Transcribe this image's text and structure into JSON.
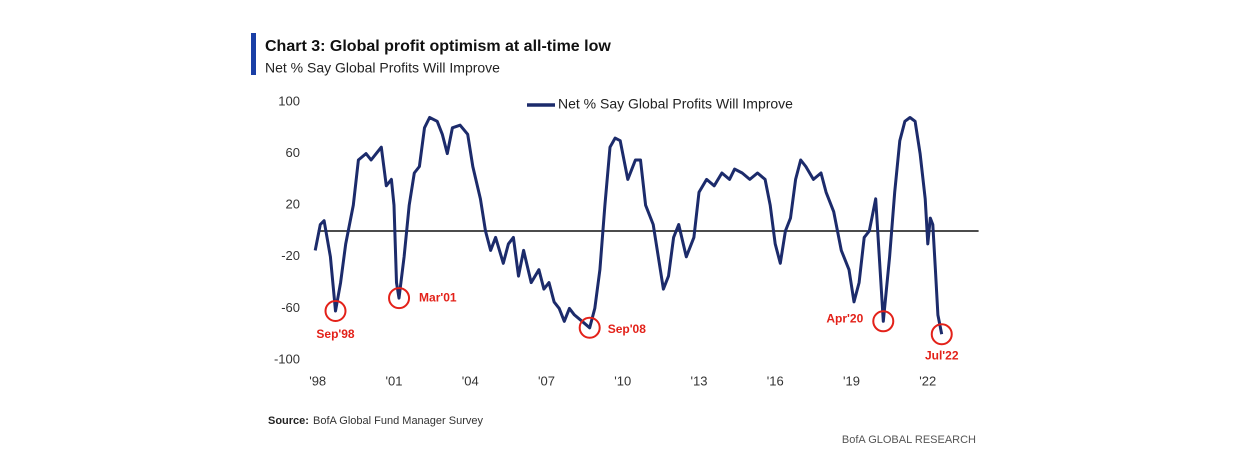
{
  "chart_data": {
    "type": "line",
    "title": "Chart 3: Global profit optimism at all-time low",
    "subtitle": "Net % Say Global Profits Will Improve",
    "source_label": "Source:",
    "source": "BofA Global Fund Manager Survey",
    "credit": "BofA GLOBAL RESEARCH",
    "xlim": [
      1997.5,
      2024
    ],
    "ylim": [
      -100,
      100
    ],
    "xticks": [
      {
        "value": 1998,
        "label": "'98"
      },
      {
        "value": 2001,
        "label": "'01"
      },
      {
        "value": 2004,
        "label": "'04"
      },
      {
        "value": 2007,
        "label": "'07"
      },
      {
        "value": 2010,
        "label": "'10"
      },
      {
        "value": 2013,
        "label": "'13"
      },
      {
        "value": 2016,
        "label": "'16"
      },
      {
        "value": 2019,
        "label": "'19"
      },
      {
        "value": 2022,
        "label": "'22"
      }
    ],
    "yticks": [
      100,
      60,
      20,
      -20,
      -60,
      -100
    ],
    "reference_line": 0,
    "legend": "top",
    "x": [
      1997.9,
      1998.1,
      1998.25,
      1998.5,
      1998.7,
      1998.9,
      1999.1,
      1999.4,
      1999.6,
      1999.9,
      2000.1,
      2000.3,
      2000.5,
      2000.7,
      2000.9,
      2001.0,
      2001.1,
      2001.2,
      2001.4,
      2001.6,
      2001.8,
      2002.0,
      2002.2,
      2002.4,
      2002.7,
      2002.9,
      2003.1,
      2003.3,
      2003.6,
      2003.9,
      2004.1,
      2004.4,
      2004.6,
      2004.8,
      2005.0,
      2005.3,
      2005.5,
      2005.7,
      2005.9,
      2006.1,
      2006.4,
      2006.7,
      2006.9,
      2007.1,
      2007.3,
      2007.5,
      2007.7,
      2007.9,
      2008.1,
      2008.4,
      2008.7,
      2008.9,
      2009.1,
      2009.3,
      2009.5,
      2009.7,
      2009.9,
      2010.2,
      2010.5,
      2010.7,
      2010.9,
      2011.2,
      2011.4,
      2011.6,
      2011.8,
      2012.0,
      2012.2,
      2012.5,
      2012.8,
      2013.0,
      2013.3,
      2013.6,
      2013.9,
      2014.2,
      2014.4,
      2014.7,
      2015.0,
      2015.3,
      2015.6,
      2015.8,
      2016.0,
      2016.2,
      2016.4,
      2016.6,
      2016.8,
      2017.0,
      2017.2,
      2017.5,
      2017.8,
      2018.0,
      2018.3,
      2018.6,
      2018.9,
      2019.1,
      2019.3,
      2019.5,
      2019.7,
      2019.95,
      2020.25,
      2020.5,
      2020.7,
      2020.9,
      2021.1,
      2021.3,
      2021.5,
      2021.7,
      2021.9,
      2022.0,
      2022.1,
      2022.2,
      2022.3,
      2022.4,
      2022.55
    ],
    "series": [
      {
        "name": "Net % Say Global Profits Will Improve",
        "color": "#1c2b6b",
        "values": [
          -15,
          5,
          8,
          -20,
          -62,
          -40,
          -10,
          20,
          55,
          60,
          55,
          60,
          65,
          35,
          40,
          20,
          -40,
          -52,
          -20,
          20,
          45,
          50,
          80,
          88,
          85,
          75,
          60,
          80,
          82,
          75,
          50,
          25,
          0,
          -15,
          -5,
          -25,
          -10,
          -5,
          -35,
          -15,
          -40,
          -30,
          -45,
          -40,
          -55,
          -60,
          -70,
          -60,
          -65,
          -70,
          -75,
          -60,
          -30,
          20,
          65,
          72,
          70,
          40,
          55,
          55,
          20,
          5,
          -20,
          -45,
          -35,
          -5,
          5,
          -20,
          -5,
          30,
          40,
          35,
          45,
          40,
          48,
          45,
          40,
          45,
          40,
          20,
          -10,
          -25,
          0,
          10,
          40,
          55,
          50,
          40,
          45,
          30,
          15,
          -15,
          -30,
          -55,
          -40,
          -5,
          0,
          25,
          -70,
          -20,
          30,
          70,
          85,
          88,
          85,
          60,
          25,
          -10,
          10,
          5,
          -30,
          -65,
          -80
        ]
      }
    ],
    "annotations": [
      {
        "text": "Sep'98",
        "x": 1998.7,
        "y": -62
      },
      {
        "text": "Mar'01",
        "x": 2001.2,
        "y": -52
      },
      {
        "text": "Sep'08",
        "x": 2008.7,
        "y": -75
      },
      {
        "text": "Apr'20",
        "x": 2020.25,
        "y": -70
      },
      {
        "text": "Jul'22",
        "x": 2022.55,
        "y": -80
      }
    ]
  }
}
